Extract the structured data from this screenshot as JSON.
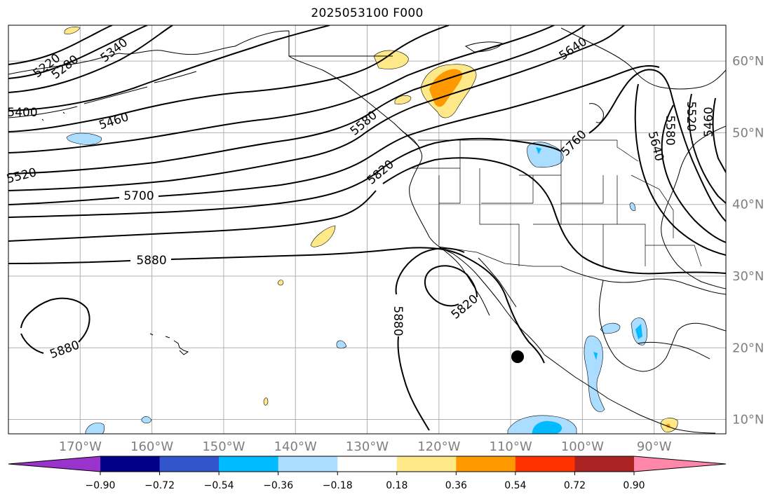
{
  "title": "2025053100 F000",
  "map": {
    "projection": "PlateCarree",
    "extent_lon": [
      -180,
      -80
    ],
    "extent_lat": [
      8,
      65
    ],
    "gridlines": true,
    "lon_labels": [
      "170°W",
      "160°W",
      "150°W",
      "140°W",
      "130°W",
      "120°W",
      "110°W",
      "100°W",
      "90°W"
    ],
    "lon_values": [
      -170,
      -160,
      -150,
      -140,
      -130,
      -120,
      -110,
      -100,
      -90
    ],
    "lat_labels": [
      "10°N",
      "20°N",
      "30°N",
      "40°N",
      "50°N",
      "60°N"
    ],
    "lat_values": [
      10,
      20,
      30,
      40,
      50,
      60
    ],
    "contour_labels": [
      "5220",
      "5280",
      "5340",
      "5400",
      "5460",
      "5520",
      "5580",
      "5640",
      "5700",
      "5760",
      "5820",
      "5820",
      "5880",
      "5880",
      "5880",
      "5520",
      "5580",
      "5640",
      "5460"
    ],
    "colors": {
      "contour": "#000000",
      "coast": "#000000",
      "grid": "#b0b0b0",
      "tick_label": "#7f7f7f",
      "marker": "#000000"
    }
  },
  "colorbar": {
    "tick_labels": [
      "−0.90",
      "−0.72",
      "−0.54",
      "−0.36",
      "−0.18",
      "0.18",
      "0.36",
      "0.54",
      "0.72",
      "0.90"
    ],
    "colors": [
      "#9933cc",
      "#000088",
      "#3355cc",
      "#00bbff",
      "#aaddff",
      "#ffffff",
      "#ffe888",
      "#ff9900",
      "#ff3300",
      "#aa2222",
      "#ff88aa"
    ]
  }
}
